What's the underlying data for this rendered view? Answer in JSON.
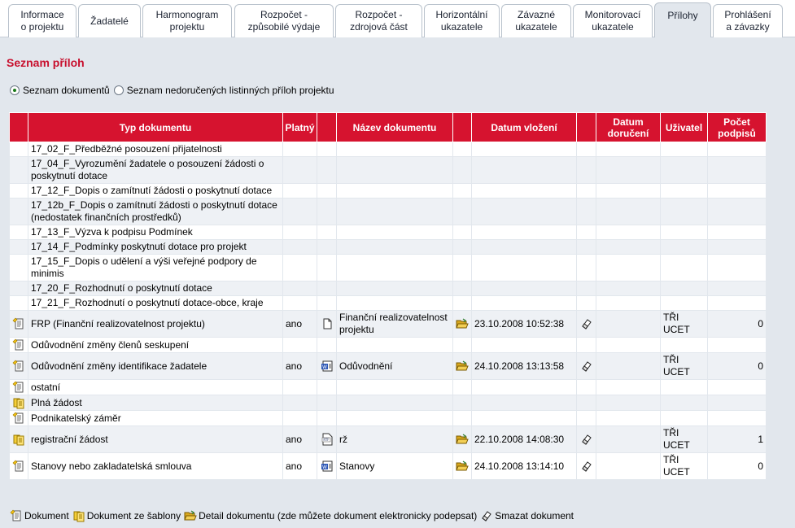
{
  "tabs": [
    {
      "label": "Informace\no projektu",
      "active": false
    },
    {
      "label": "Žadatelé",
      "active": false
    },
    {
      "label": "Harmonogram\nprojektu",
      "active": false
    },
    {
      "label": "Rozpočet -\nzpůsobilé výdaje",
      "active": false
    },
    {
      "label": "Rozpočet -\nzdrojová část",
      "active": false
    },
    {
      "label": "Horizontální\nukazatele",
      "active": false
    },
    {
      "label": "Závazné\nukazatele",
      "active": false
    },
    {
      "label": "Monitorovací\nukazatele",
      "active": false
    },
    {
      "label": "Přílohy",
      "active": true
    },
    {
      "label": "Prohlášení\na závazky",
      "active": false
    }
  ],
  "page": {
    "title": "Seznam příloh"
  },
  "view_options": [
    {
      "label": "Seznam dokumentů",
      "checked": true
    },
    {
      "label": "Seznam nedoručených listinných příloh projektu",
      "checked": false
    }
  ],
  "table": {
    "headers": {
      "type": "Typ dokumentu",
      "valid": "Platný",
      "name": "Název dokumentu",
      "inserted": "Datum vložení",
      "delivered": "Datum doručení",
      "user": "Uživatel",
      "signatures": "Počet podpisů"
    },
    "rows": [
      {
        "icon": "",
        "type": "17_02_F_Předběžné posouzení přijatelnosti",
        "valid": "",
        "file_icon": "",
        "name": "",
        "detail": false,
        "inserted": "",
        "delete": false,
        "delivered": "",
        "user": "",
        "signatures": ""
      },
      {
        "icon": "",
        "type": "17_04_F_Vyrozumění žadatele o posouzení žádosti o poskytnutí dotace",
        "valid": "",
        "file_icon": "",
        "name": "",
        "detail": false,
        "inserted": "",
        "delete": false,
        "delivered": "",
        "user": "",
        "signatures": ""
      },
      {
        "icon": "",
        "type": "17_12_F_Dopis o zamítnutí žádosti o poskytnutí dotace",
        "valid": "",
        "file_icon": "",
        "name": "",
        "detail": false,
        "inserted": "",
        "delete": false,
        "delivered": "",
        "user": "",
        "signatures": ""
      },
      {
        "icon": "",
        "type": "17_12b_F_Dopis o zamítnutí žádosti o poskytnutí dotace (nedostatek finančních prostředků)",
        "valid": "",
        "file_icon": "",
        "name": "",
        "detail": false,
        "inserted": "",
        "delete": false,
        "delivered": "",
        "user": "",
        "signatures": ""
      },
      {
        "icon": "",
        "type": "17_13_F_Výzva k podpisu Podmínek",
        "valid": "",
        "file_icon": "",
        "name": "",
        "detail": false,
        "inserted": "",
        "delete": false,
        "delivered": "",
        "user": "",
        "signatures": ""
      },
      {
        "icon": "",
        "type": "17_14_F_Podmínky poskytnutí dotace pro projekt",
        "valid": "",
        "file_icon": "",
        "name": "",
        "detail": false,
        "inserted": "",
        "delete": false,
        "delivered": "",
        "user": "",
        "signatures": ""
      },
      {
        "icon": "",
        "type": "17_15_F_Dopis o udělení a výši veřejné podpory de minimis",
        "valid": "",
        "file_icon": "",
        "name": "",
        "detail": false,
        "inserted": "",
        "delete": false,
        "delivered": "",
        "user": "",
        "signatures": ""
      },
      {
        "icon": "",
        "type": "17_20_F_Rozhodnutí o poskytnutí dotace",
        "valid": "",
        "file_icon": "",
        "name": "",
        "detail": false,
        "inserted": "",
        "delete": false,
        "delivered": "",
        "user": "",
        "signatures": ""
      },
      {
        "icon": "",
        "type": "17_21_F_Rozhodnutí o poskytnutí dotace-obce, kraje",
        "valid": "",
        "file_icon": "",
        "name": "",
        "detail": false,
        "inserted": "",
        "delete": false,
        "delivered": "",
        "user": "",
        "signatures": ""
      },
      {
        "icon": "document",
        "type": "FRP (Finanční realizovatelnost projektu)",
        "valid": "ano",
        "file_icon": "file",
        "name": "Finanční realizovatelnost projektu",
        "detail": true,
        "inserted": "23.10.2008 10:52:38",
        "delete": true,
        "delivered": "",
        "user": "TŘI UCET",
        "signatures": "0"
      },
      {
        "icon": "document",
        "type": "Odůvodnění změny členů seskupení",
        "valid": "",
        "file_icon": "",
        "name": "",
        "detail": false,
        "inserted": "",
        "delete": false,
        "delivered": "",
        "user": "",
        "signatures": ""
      },
      {
        "icon": "document",
        "type": "Odůvodnění změny identifikace žadatele",
        "valid": "ano",
        "file_icon": "word",
        "name": "Odůvodnění",
        "detail": true,
        "inserted": "24.10.2008 13:13:58",
        "delete": true,
        "delivered": "",
        "user": "TŘI UCET",
        "signatures": "0"
      },
      {
        "icon": "document",
        "type": "ostatní",
        "valid": "",
        "file_icon": "",
        "name": "",
        "detail": false,
        "inserted": "",
        "delete": false,
        "delivered": "",
        "user": "",
        "signatures": ""
      },
      {
        "icon": "template",
        "type": "Plná žádost",
        "valid": "",
        "file_icon": "",
        "name": "",
        "detail": false,
        "inserted": "",
        "delete": false,
        "delivered": "",
        "user": "",
        "signatures": ""
      },
      {
        "icon": "document",
        "type": "Podnikatelský záměr",
        "valid": "",
        "file_icon": "",
        "name": "",
        "detail": false,
        "inserted": "",
        "delete": false,
        "delivered": "",
        "user": "",
        "signatures": ""
      },
      {
        "icon": "template",
        "type": "registrační žádost",
        "valid": "ano",
        "file_icon": "rtf",
        "name": "rž",
        "detail": true,
        "inserted": "22.10.2008 14:08:30",
        "delete": true,
        "delivered": "",
        "user": "TŘI UCET",
        "signatures": "1"
      },
      {
        "icon": "document",
        "type": "Stanovy nebo zakladatelská smlouva",
        "valid": "ano",
        "file_icon": "word",
        "name": "Stanovy",
        "detail": true,
        "inserted": "24.10.2008 13:14:10",
        "delete": true,
        "delivered": "",
        "user": "TŘI UCET",
        "signatures": "0"
      }
    ]
  },
  "legend": [
    {
      "icon": "document",
      "label": "Dokument"
    },
    {
      "icon": "template",
      "label": "Dokument ze šablony"
    },
    {
      "icon": "folder-open",
      "label": "Detail dokumentu (zde můžete dokument elektronicky podepsat)"
    },
    {
      "icon": "eraser",
      "label": "Smazat dokument"
    }
  ],
  "colors": {
    "accent": "#d6132f",
    "title": "#c8102e",
    "background": "#e2e7ed"
  }
}
